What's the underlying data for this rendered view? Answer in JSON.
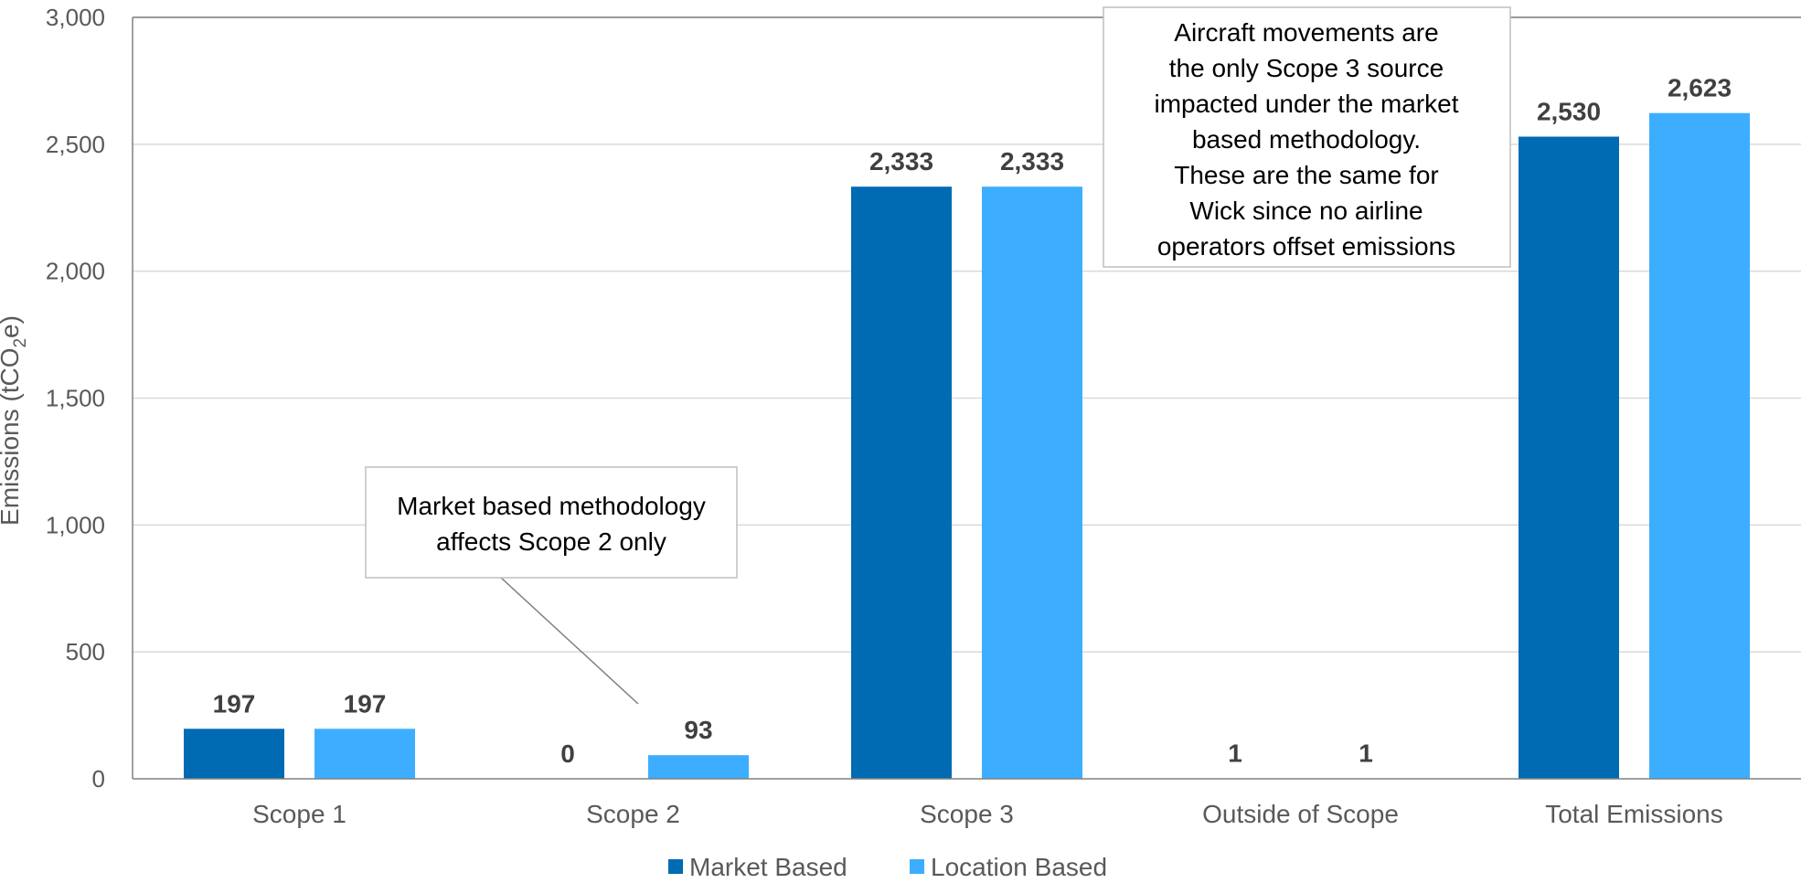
{
  "chart_data": {
    "type": "bar",
    "categories": [
      "Scope 1",
      "Scope 2",
      "Scope 3",
      "Outside of Scope",
      "Total Emissions"
    ],
    "series": [
      {
        "name": "Market Based",
        "color": "#006AB3",
        "values": [
          197,
          0,
          2333,
          1,
          2530
        ],
        "labels": [
          "197",
          "0",
          "2,333",
          "1",
          "2,530"
        ]
      },
      {
        "name": "Location Based",
        "color": "#3DAEFF",
        "values": [
          197,
          93,
          2333,
          1,
          2623
        ],
        "labels": [
          "197",
          "93",
          "2,333",
          "1",
          "2,623"
        ]
      }
    ],
    "ylabel": {
      "main": "Emissions (tCO",
      "sub": "2",
      "tail": "e)"
    },
    "ylim": [
      0,
      3000
    ],
    "yticks": [
      0,
      500,
      1000,
      1500,
      2000,
      2500,
      3000
    ],
    "ytick_labels": [
      "0",
      "500",
      "1,000",
      "1,500",
      "2,000",
      "2,500",
      "3,000"
    ],
    "grid": true,
    "legend_position": "bottom",
    "annotations": [
      {
        "lines": [
          "Market based methodology",
          "affects Scope 2 only"
        ]
      },
      {
        "lines": [
          "Aircraft movements are",
          "the only Scope 3 source",
          "impacted under the market",
          "based methodology.",
          "These are the same for",
          "Wick since no airline",
          "operators offset emissions"
        ]
      }
    ]
  }
}
